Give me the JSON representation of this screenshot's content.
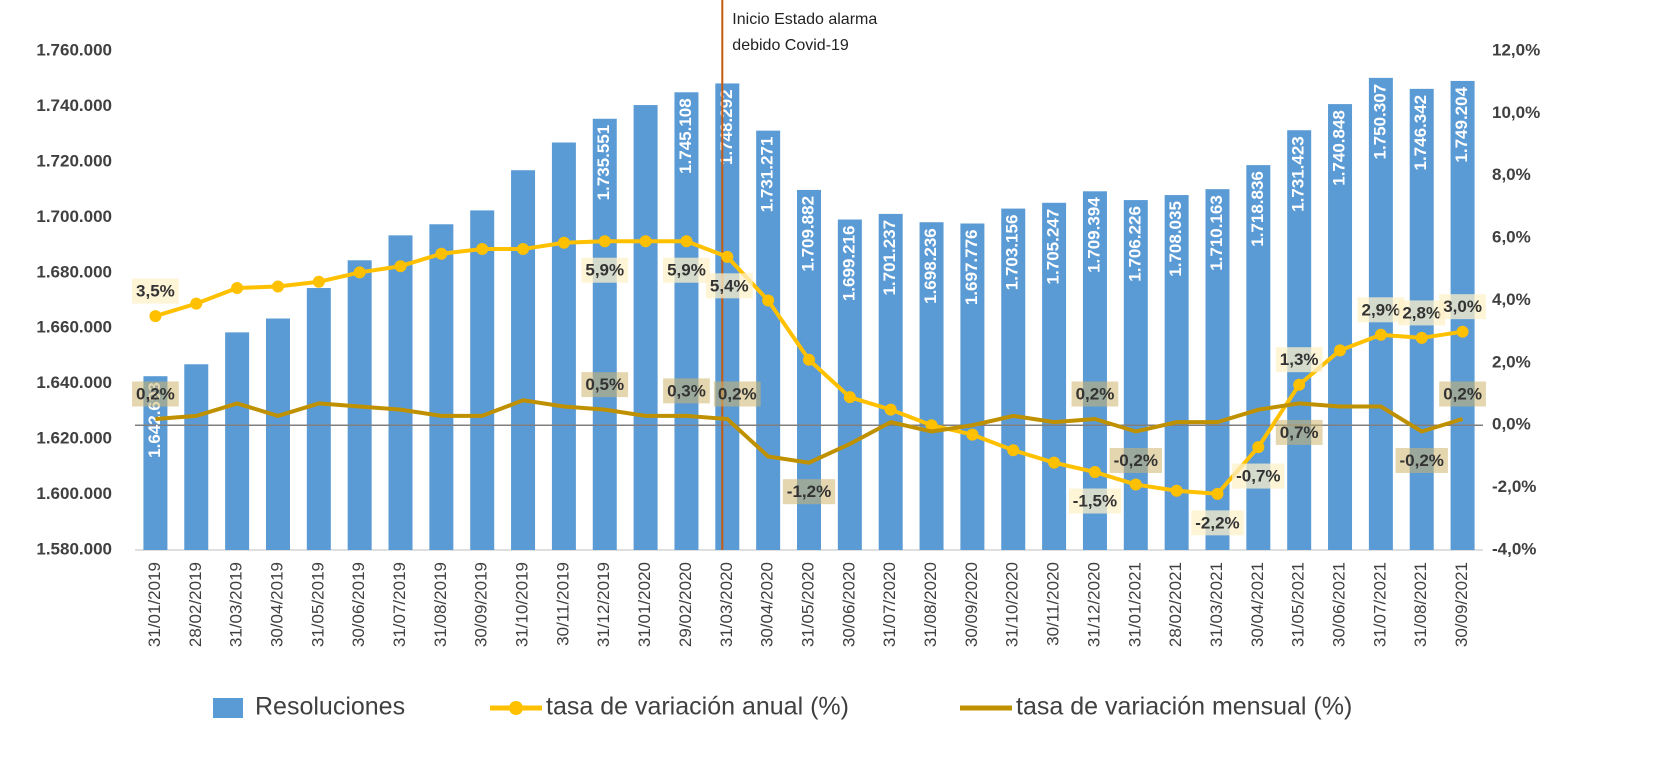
{
  "chart_data": {
    "type": "bar",
    "annotation": [
      "Inicio Estado alarma",
      "debido Covid-19"
    ],
    "categories": [
      "31/01/2019",
      "28/02/2019",
      "31/03/2019",
      "30/04/2019",
      "31/05/2019",
      "30/06/2019",
      "31/07/2019",
      "31/08/2019",
      "30/09/2019",
      "31/10/2019",
      "30/11/2019",
      "31/12/2019",
      "31/01/2020",
      "29/02/2020",
      "31/03/2020",
      "30/04/2020",
      "31/05/2020",
      "30/06/2020",
      "31/07/2020",
      "31/08/2020",
      "30/09/2020",
      "31/10/2020",
      "30/11/2020",
      "31/12/2020",
      "31/01/2021",
      "28/02/2021",
      "31/03/2021",
      "30/04/2021",
      "31/05/2021",
      "30/06/2021",
      "31/07/2021",
      "31/08/2021",
      "30/09/2021"
    ],
    "series": [
      {
        "name": "Resoluciones",
        "type": "bar",
        "color": "#5b9bd5",
        "values": [
          1642693,
          1647000,
          1658500,
          1663500,
          1674500,
          1684500,
          1693500,
          1697500,
          1702500,
          1717000,
          1727000,
          1735551,
          1740500,
          1745108,
          1748292,
          1731271,
          1709882,
          1699216,
          1701237,
          1698236,
          1697776,
          1703156,
          1705247,
          1709394,
          1706226,
          1708035,
          1710163,
          1718836,
          1731423,
          1740848,
          1750307,
          1746342,
          1749204
        ],
        "value_labels": [
          "1.642.693",
          null,
          null,
          null,
          null,
          null,
          null,
          null,
          null,
          null,
          null,
          "1.735.551",
          null,
          "1.745.108",
          "1.748.292",
          "1.731.271",
          "1.709.882",
          "1.699.216",
          "1.701.237",
          "1.698.236",
          "1.697.776",
          "1.703.156",
          "1.705.247",
          "1.709.394",
          "1.706.226",
          "1.708.035",
          "1.710.163",
          "1.718.836",
          "1.731.423",
          "1.740.848",
          "1.750.307",
          "1.746.342",
          "1.749.204"
        ]
      },
      {
        "name": "tasa de variación anual (%)",
        "type": "line",
        "axis": "y2",
        "color": "#ffc000",
        "values": [
          3.5,
          3.9,
          4.4,
          4.45,
          4.6,
          4.9,
          5.1,
          5.5,
          5.65,
          5.65,
          5.85,
          5.9,
          5.9,
          5.9,
          5.4,
          4.0,
          2.1,
          0.9,
          0.5,
          0.0,
          -0.3,
          -0.8,
          -1.2,
          -1.5,
          -1.9,
          -2.1,
          -2.2,
          -0.7,
          1.3,
          2.4,
          2.9,
          2.8,
          3.0
        ],
        "value_labels": [
          "3,5%",
          null,
          null,
          null,
          null,
          null,
          null,
          null,
          null,
          null,
          null,
          "5,9%",
          null,
          "5,9%",
          "5,4%",
          null,
          null,
          null,
          null,
          null,
          null,
          null,
          null,
          "-1,5%",
          null,
          null,
          "-2,2%",
          "-0,7%",
          "1,3%",
          null,
          "2,9%",
          "2,8%",
          "3,0%"
        ]
      },
      {
        "name": "tasa de variación mensual (%)",
        "type": "line",
        "axis": "y2",
        "color": "#bf9000",
        "values": [
          0.2,
          0.3,
          0.7,
          0.3,
          0.7,
          0.6,
          0.5,
          0.3,
          0.3,
          0.8,
          0.6,
          0.5,
          0.3,
          0.3,
          0.2,
          -1.0,
          -1.2,
          -0.6,
          0.1,
          -0.2,
          0.0,
          0.3,
          0.1,
          0.2,
          -0.2,
          0.1,
          0.1,
          0.5,
          0.7,
          0.6,
          0.6,
          -0.2,
          0.2
        ],
        "value_labels": [
          "0,2%",
          null,
          null,
          null,
          null,
          null,
          null,
          null,
          null,
          null,
          null,
          "0,5%",
          null,
          "0,3%",
          "0,2%",
          null,
          "-1,2%",
          null,
          null,
          null,
          null,
          null,
          null,
          "0,2%",
          "-0,2%",
          null,
          null,
          null,
          "0,7%",
          null,
          null,
          "-0,2%",
          "0,2%"
        ]
      }
    ],
    "ylim": [
      1580000,
      1760000
    ],
    "yticks": [
      {
        "value": 1580000,
        "label": "1.580.000"
      },
      {
        "value": 1600000,
        "label": "1.600.000"
      },
      {
        "value": 1620000,
        "label": "1.620.000"
      },
      {
        "value": 1640000,
        "label": "1.640.000"
      },
      {
        "value": 1660000,
        "label": "1.660.000"
      },
      {
        "value": 1680000,
        "label": "1.680.000"
      },
      {
        "value": 1700000,
        "label": "1.700.000"
      },
      {
        "value": 1720000,
        "label": "1.720.000"
      },
      {
        "value": 1740000,
        "label": "1.740.000"
      },
      {
        "value": 1760000,
        "label": "1.760.000"
      }
    ],
    "y2lim": [
      -4,
      12
    ],
    "y2ticks": [
      {
        "value": -4,
        "label": "-4,0%"
      },
      {
        "value": -2,
        "label": "-2,0%"
      },
      {
        "value": 0,
        "label": "0,0%"
      },
      {
        "value": 2,
        "label": "2,0%"
      },
      {
        "value": 4,
        "label": "4,0%"
      },
      {
        "value": 6,
        "label": "6,0%"
      },
      {
        "value": 8,
        "label": "8,0%"
      },
      {
        "value": 10,
        "label": "10,0%"
      },
      {
        "value": 12,
        "label": "12,0%"
      }
    ],
    "grid": false
  }
}
